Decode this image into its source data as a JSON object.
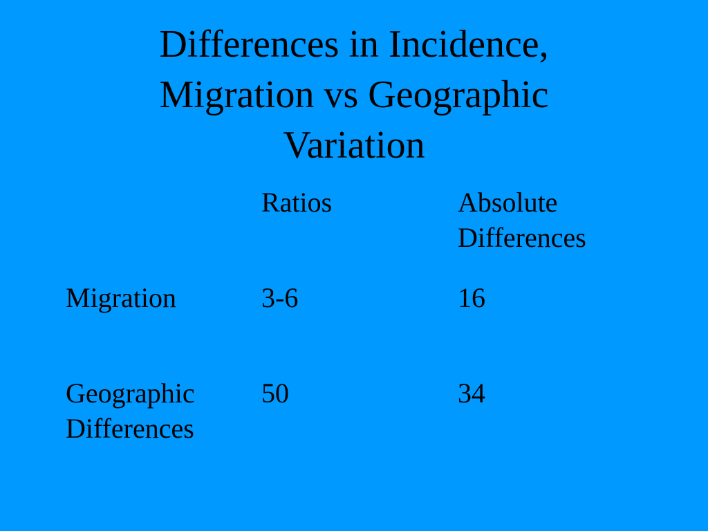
{
  "title": "Differences in Incidence, Migration vs Geographic Variation",
  "table": {
    "header": [
      "Ratios",
      "Absolute Differences"
    ],
    "rows": [
      [
        "Migration",
        "3-6",
        16
      ],
      [
        "Geographic Differences",
        50,
        34
      ]
    ]
  }
}
